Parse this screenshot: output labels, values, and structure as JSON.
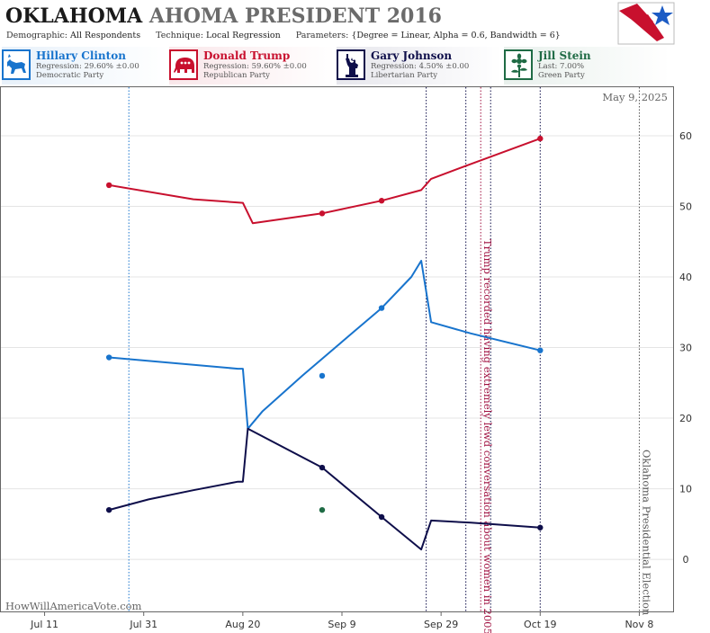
{
  "header": {
    "title_state": "OKLAHOMA",
    "title_rest": "AHOMA PRESIDENT 2016",
    "params": {
      "demographic_label": "Demographic:",
      "demographic": "All Respondents",
      "technique_label": "Technique:",
      "technique": "Local Regression",
      "parameters_label": "Parameters:",
      "parameters": "{Degree = Linear, Alpha = 0.6, Bandwidth = 6}"
    }
  },
  "candidates": [
    {
      "name": "Hillary Clinton",
      "stat": "Regression: 29.60% ±0.00",
      "party": "Democratic Party",
      "color": "#1874cd",
      "icon": "donkey-icon"
    },
    {
      "name": "Donald Trump",
      "stat": "Regression: 59.60% ±0.00",
      "party": "Republican Party",
      "color": "#c8102e",
      "icon": "elephant-icon"
    },
    {
      "name": "Gary Johnson",
      "stat": "Regression: 4.50% ±0.00",
      "party": "Libertarian Party",
      "color": "#0e0e4a",
      "icon": "liberty-torch-icon"
    },
    {
      "name": "Jill Stein",
      "stat": "Last: 7.00%",
      "party": "Green Party",
      "color": "#1f6b45",
      "icon": "flower-icon"
    }
  ],
  "chart_data": {
    "type": "line",
    "date_label": "May 9, 2025",
    "watermark": "HowWillAmericaVote.com",
    "x_ticks": [
      "Jul 11",
      "Jul 31",
      "Aug 20",
      "Sep 9",
      "Sep 29",
      "Oct 19",
      "Nov 8"
    ],
    "y_ticks": [
      0,
      10,
      20,
      30,
      40,
      50,
      60
    ],
    "xlim": [
      "2016-07-02",
      "2016-11-15"
    ],
    "ylim": [
      -7.5,
      67
    ],
    "annotations": [
      {
        "date": "2016-10-07",
        "text": "Trump recorded having extremely lewd conversation about women in 2005",
        "color": "#a01040"
      },
      {
        "date": "2016-11-08",
        "text": "Oklahoma Presidential Election",
        "color": "#555555"
      }
    ],
    "vlines": [
      {
        "date": "2016-07-28",
        "color": "#1874cd",
        "style": "dotted"
      },
      {
        "date": "2016-09-26",
        "color": "#0e0e4a",
        "style": "dotted"
      },
      {
        "date": "2016-10-04",
        "color": "#0e0e4a",
        "style": "dotted"
      },
      {
        "date": "2016-10-07",
        "color": "#a01040",
        "style": "dotted"
      },
      {
        "date": "2016-10-09",
        "color": "#0e0e4a",
        "style": "dotted"
      },
      {
        "date": "2016-10-19",
        "color": "#0e0e4a",
        "style": "dotted"
      },
      {
        "date": "2016-11-08",
        "color": "#555555",
        "style": "dotted"
      }
    ],
    "series": [
      {
        "name": "Hillary Clinton",
        "color": "#1874cd",
        "line": [
          [
            "2016-07-24",
            28.6
          ],
          [
            "2016-08-19",
            27.0
          ],
          [
            "2016-08-20",
            27.0
          ],
          [
            "2016-08-21",
            18.5
          ],
          [
            "2016-08-24",
            21.0
          ],
          [
            "2016-09-01",
            26.0
          ],
          [
            "2016-09-11",
            32.0
          ],
          [
            "2016-09-17",
            35.6
          ],
          [
            "2016-09-23",
            40.0
          ],
          [
            "2016-09-25",
            42.3
          ],
          [
            "2016-09-27",
            33.6
          ],
          [
            "2016-10-05",
            32.0
          ],
          [
            "2016-10-19",
            29.6
          ]
        ],
        "points": [
          [
            "2016-07-24",
            28.6
          ],
          [
            "2016-09-05",
            26.0
          ],
          [
            "2016-09-17",
            35.6
          ],
          [
            "2016-10-19",
            29.6
          ]
        ]
      },
      {
        "name": "Donald Trump",
        "color": "#c8102e",
        "line": [
          [
            "2016-07-24",
            53.0
          ],
          [
            "2016-08-10",
            51.0
          ],
          [
            "2016-08-20",
            50.5
          ],
          [
            "2016-08-22",
            47.6
          ],
          [
            "2016-09-05",
            49.0
          ],
          [
            "2016-09-17",
            50.8
          ],
          [
            "2016-09-25",
            52.3
          ],
          [
            "2016-09-27",
            53.9
          ],
          [
            "2016-10-05",
            56.0
          ],
          [
            "2016-10-19",
            59.6
          ]
        ],
        "points": [
          [
            "2016-07-24",
            53.0
          ],
          [
            "2016-09-05",
            49.0
          ],
          [
            "2016-09-17",
            50.8
          ],
          [
            "2016-10-19",
            59.6
          ]
        ]
      },
      {
        "name": "Gary Johnson",
        "color": "#0e0e4a",
        "line": [
          [
            "2016-07-24",
            7.0
          ],
          [
            "2016-08-01",
            8.5
          ],
          [
            "2016-08-10",
            9.8
          ],
          [
            "2016-08-19",
            11.0
          ],
          [
            "2016-08-20",
            11.0
          ],
          [
            "2016-08-21",
            18.5
          ],
          [
            "2016-09-05",
            13.0
          ],
          [
            "2016-09-17",
            6.0
          ],
          [
            "2016-09-25",
            1.4
          ],
          [
            "2016-09-27",
            5.5
          ],
          [
            "2016-10-05",
            5.2
          ],
          [
            "2016-10-19",
            4.5
          ]
        ],
        "points": [
          [
            "2016-07-24",
            7.0
          ],
          [
            "2016-09-05",
            13.0
          ],
          [
            "2016-09-17",
            6.0
          ],
          [
            "2016-10-19",
            4.5
          ]
        ]
      },
      {
        "name": "Jill Stein",
        "color": "#1f6b45",
        "line": [],
        "points": [
          [
            "2016-09-05",
            7.0
          ]
        ]
      }
    ]
  }
}
